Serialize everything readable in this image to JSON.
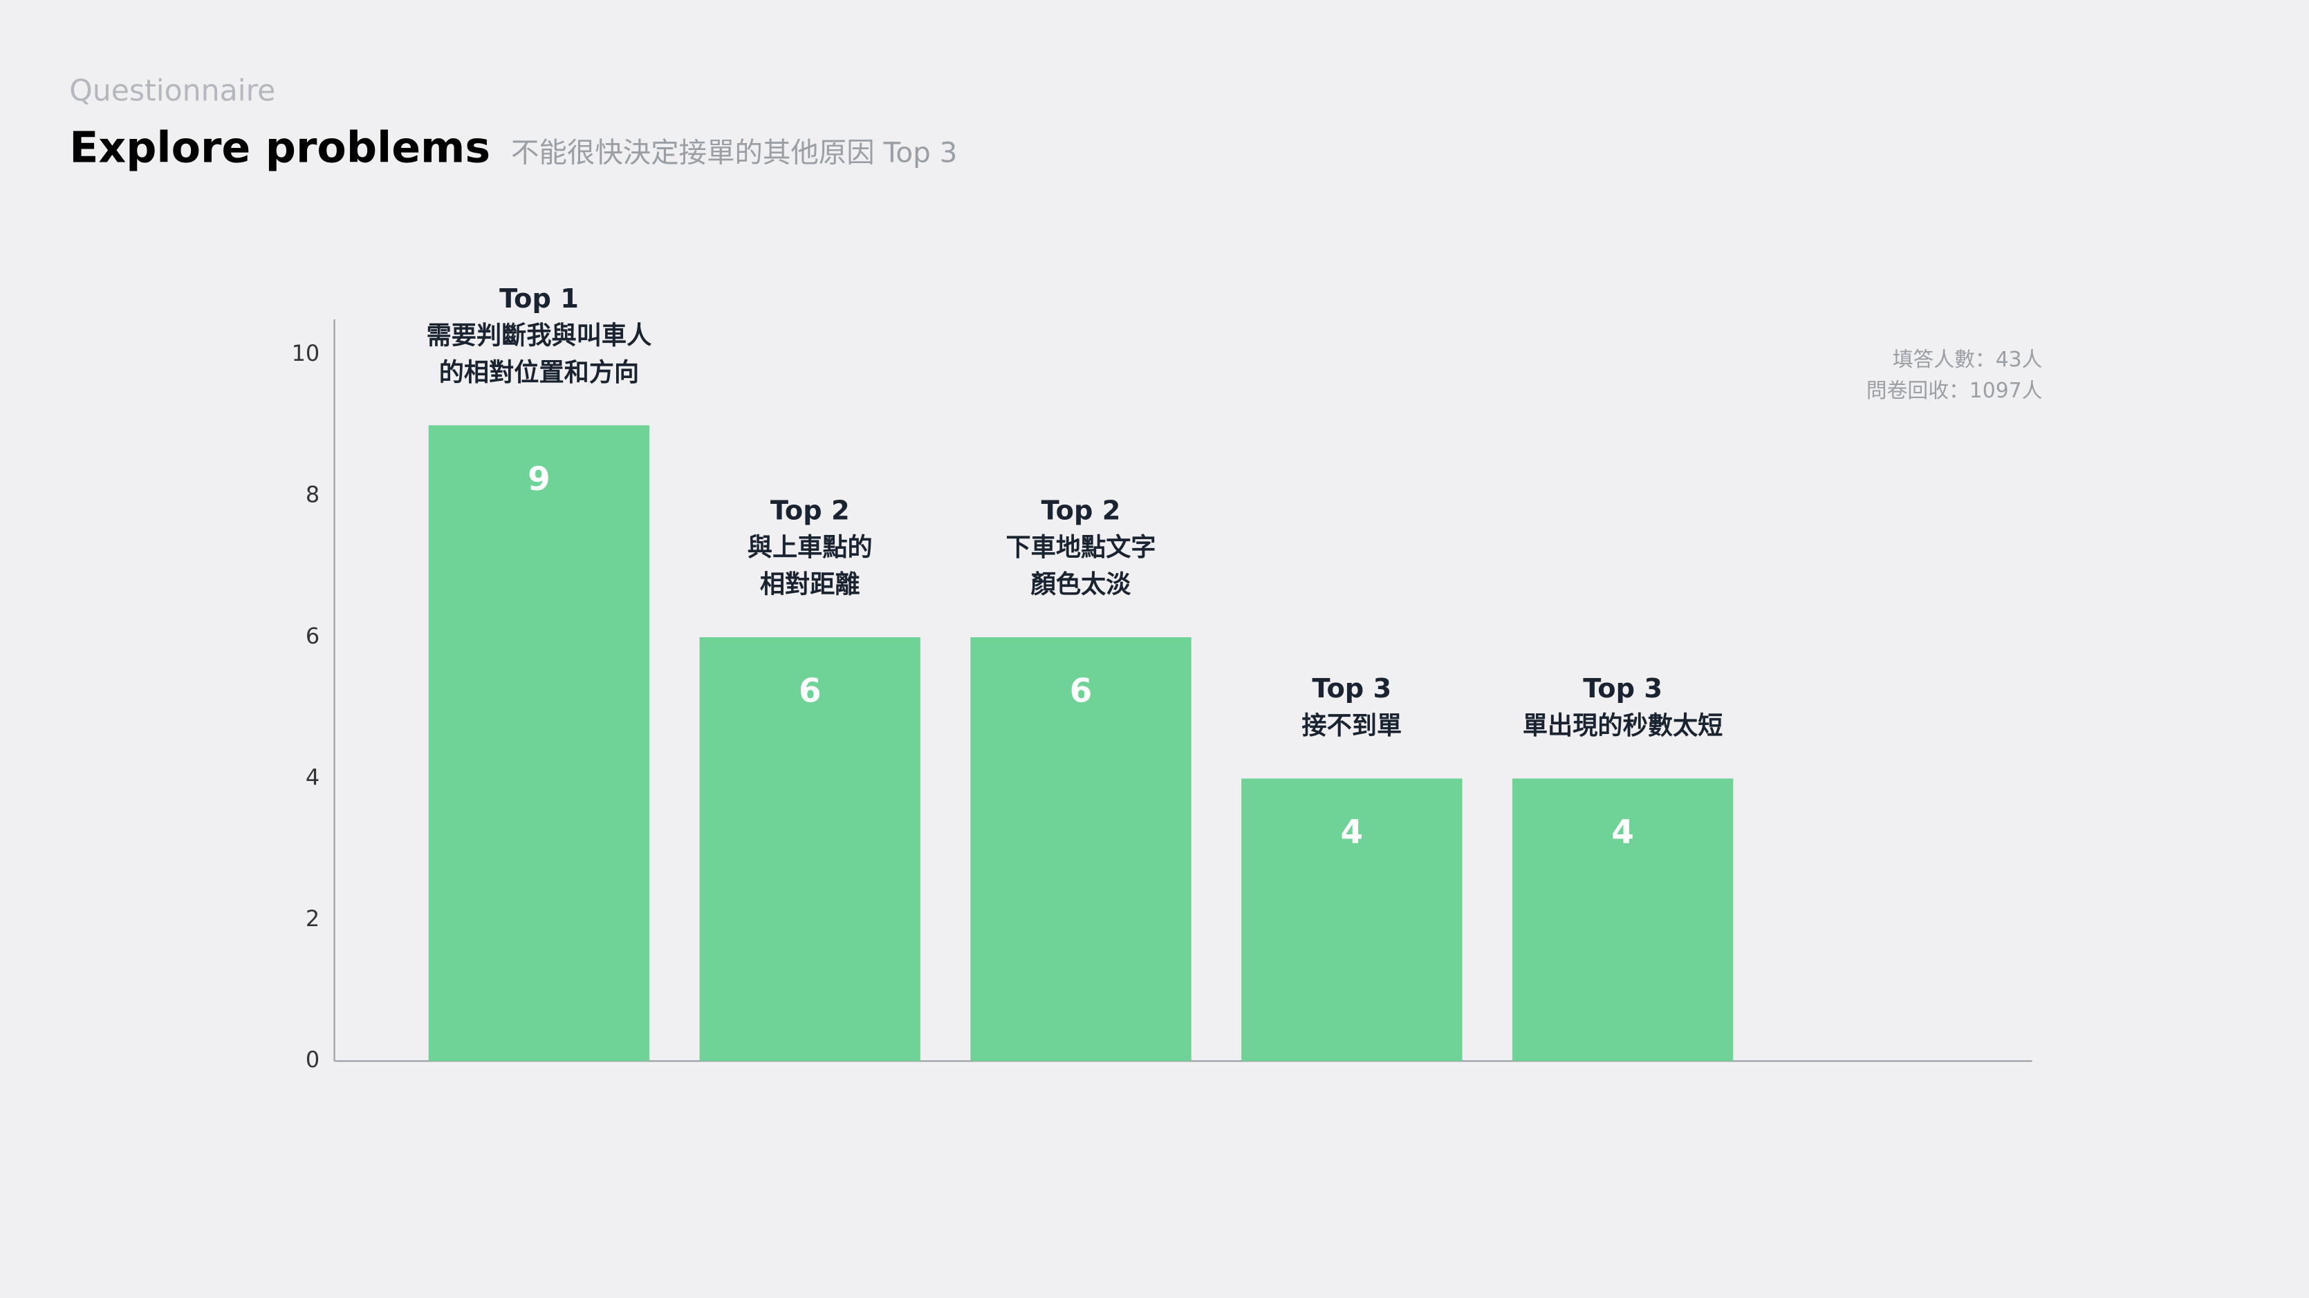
{
  "chart_data": {
    "type": "bar",
    "eyebrow": "Questionnaire",
    "title": "Explore problems",
    "subtitle": "不能很快決定接單的其他原因 Top 3",
    "notes": [
      "填答人數：43人",
      "問卷回收：1097人"
    ],
    "ranks": [
      "Top 1",
      "Top 2",
      "Top 2",
      "Top 3",
      "Top 3"
    ],
    "categories": [
      [
        "需要判斷我與叫車人",
        "的相對位置和方向"
      ],
      [
        "與上車點的",
        "相對距離"
      ],
      [
        "下車地點文字",
        "顏色太淡"
      ],
      [
        "接不到單"
      ],
      [
        "單出現的秒數太短"
      ]
    ],
    "values": [
      9,
      6,
      6,
      4,
      4
    ],
    "color": "#6fd397",
    "ylim": [
      0,
      10.5
    ],
    "yticks": [
      0,
      2,
      4,
      6,
      8,
      10
    ]
  }
}
